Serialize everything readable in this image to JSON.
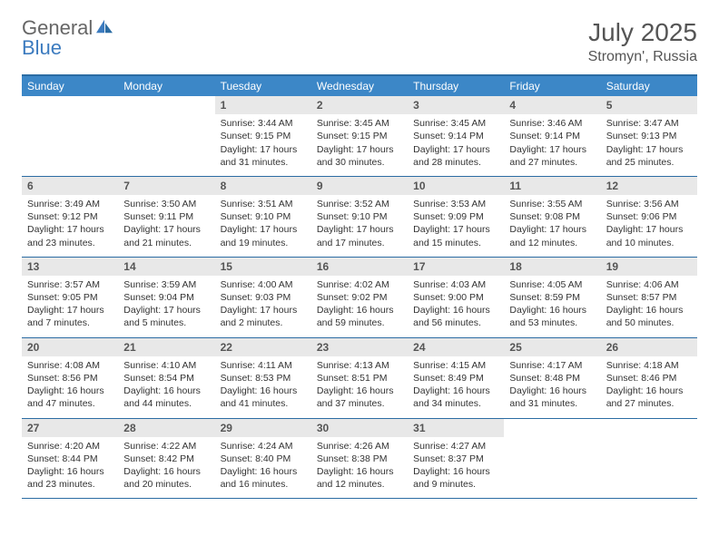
{
  "logo": {
    "text1": "General",
    "text2": "Blue"
  },
  "header": {
    "month": "July 2025",
    "location": "Stromyn', Russia"
  },
  "colors": {
    "header_bar": "#3c87c7",
    "border": "#2b6ca3",
    "daynum_bg": "#e8e8e8",
    "logo_blue": "#3c7bbf"
  },
  "day_labels": [
    "Sunday",
    "Monday",
    "Tuesday",
    "Wednesday",
    "Thursday",
    "Friday",
    "Saturday"
  ],
  "weeks": [
    [
      {
        "blank": true
      },
      {
        "blank": true
      },
      {
        "num": "1",
        "sunrise": "Sunrise: 3:44 AM",
        "sunset": "Sunset: 9:15 PM",
        "day1": "Daylight: 17 hours",
        "day2": "and 31 minutes."
      },
      {
        "num": "2",
        "sunrise": "Sunrise: 3:45 AM",
        "sunset": "Sunset: 9:15 PM",
        "day1": "Daylight: 17 hours",
        "day2": "and 30 minutes."
      },
      {
        "num": "3",
        "sunrise": "Sunrise: 3:45 AM",
        "sunset": "Sunset: 9:14 PM",
        "day1": "Daylight: 17 hours",
        "day2": "and 28 minutes."
      },
      {
        "num": "4",
        "sunrise": "Sunrise: 3:46 AM",
        "sunset": "Sunset: 9:14 PM",
        "day1": "Daylight: 17 hours",
        "day2": "and 27 minutes."
      },
      {
        "num": "5",
        "sunrise": "Sunrise: 3:47 AM",
        "sunset": "Sunset: 9:13 PM",
        "day1": "Daylight: 17 hours",
        "day2": "and 25 minutes."
      }
    ],
    [
      {
        "num": "6",
        "sunrise": "Sunrise: 3:49 AM",
        "sunset": "Sunset: 9:12 PM",
        "day1": "Daylight: 17 hours",
        "day2": "and 23 minutes."
      },
      {
        "num": "7",
        "sunrise": "Sunrise: 3:50 AM",
        "sunset": "Sunset: 9:11 PM",
        "day1": "Daylight: 17 hours",
        "day2": "and 21 minutes."
      },
      {
        "num": "8",
        "sunrise": "Sunrise: 3:51 AM",
        "sunset": "Sunset: 9:10 PM",
        "day1": "Daylight: 17 hours",
        "day2": "and 19 minutes."
      },
      {
        "num": "9",
        "sunrise": "Sunrise: 3:52 AM",
        "sunset": "Sunset: 9:10 PM",
        "day1": "Daylight: 17 hours",
        "day2": "and 17 minutes."
      },
      {
        "num": "10",
        "sunrise": "Sunrise: 3:53 AM",
        "sunset": "Sunset: 9:09 PM",
        "day1": "Daylight: 17 hours",
        "day2": "and 15 minutes."
      },
      {
        "num": "11",
        "sunrise": "Sunrise: 3:55 AM",
        "sunset": "Sunset: 9:08 PM",
        "day1": "Daylight: 17 hours",
        "day2": "and 12 minutes."
      },
      {
        "num": "12",
        "sunrise": "Sunrise: 3:56 AM",
        "sunset": "Sunset: 9:06 PM",
        "day1": "Daylight: 17 hours",
        "day2": "and 10 minutes."
      }
    ],
    [
      {
        "num": "13",
        "sunrise": "Sunrise: 3:57 AM",
        "sunset": "Sunset: 9:05 PM",
        "day1": "Daylight: 17 hours",
        "day2": "and 7 minutes."
      },
      {
        "num": "14",
        "sunrise": "Sunrise: 3:59 AM",
        "sunset": "Sunset: 9:04 PM",
        "day1": "Daylight: 17 hours",
        "day2": "and 5 minutes."
      },
      {
        "num": "15",
        "sunrise": "Sunrise: 4:00 AM",
        "sunset": "Sunset: 9:03 PM",
        "day1": "Daylight: 17 hours",
        "day2": "and 2 minutes."
      },
      {
        "num": "16",
        "sunrise": "Sunrise: 4:02 AM",
        "sunset": "Sunset: 9:02 PM",
        "day1": "Daylight: 16 hours",
        "day2": "and 59 minutes."
      },
      {
        "num": "17",
        "sunrise": "Sunrise: 4:03 AM",
        "sunset": "Sunset: 9:00 PM",
        "day1": "Daylight: 16 hours",
        "day2": "and 56 minutes."
      },
      {
        "num": "18",
        "sunrise": "Sunrise: 4:05 AM",
        "sunset": "Sunset: 8:59 PM",
        "day1": "Daylight: 16 hours",
        "day2": "and 53 minutes."
      },
      {
        "num": "19",
        "sunrise": "Sunrise: 4:06 AM",
        "sunset": "Sunset: 8:57 PM",
        "day1": "Daylight: 16 hours",
        "day2": "and 50 minutes."
      }
    ],
    [
      {
        "num": "20",
        "sunrise": "Sunrise: 4:08 AM",
        "sunset": "Sunset: 8:56 PM",
        "day1": "Daylight: 16 hours",
        "day2": "and 47 minutes."
      },
      {
        "num": "21",
        "sunrise": "Sunrise: 4:10 AM",
        "sunset": "Sunset: 8:54 PM",
        "day1": "Daylight: 16 hours",
        "day2": "and 44 minutes."
      },
      {
        "num": "22",
        "sunrise": "Sunrise: 4:11 AM",
        "sunset": "Sunset: 8:53 PM",
        "day1": "Daylight: 16 hours",
        "day2": "and 41 minutes."
      },
      {
        "num": "23",
        "sunrise": "Sunrise: 4:13 AM",
        "sunset": "Sunset: 8:51 PM",
        "day1": "Daylight: 16 hours",
        "day2": "and 37 minutes."
      },
      {
        "num": "24",
        "sunrise": "Sunrise: 4:15 AM",
        "sunset": "Sunset: 8:49 PM",
        "day1": "Daylight: 16 hours",
        "day2": "and 34 minutes."
      },
      {
        "num": "25",
        "sunrise": "Sunrise: 4:17 AM",
        "sunset": "Sunset: 8:48 PM",
        "day1": "Daylight: 16 hours",
        "day2": "and 31 minutes."
      },
      {
        "num": "26",
        "sunrise": "Sunrise: 4:18 AM",
        "sunset": "Sunset: 8:46 PM",
        "day1": "Daylight: 16 hours",
        "day2": "and 27 minutes."
      }
    ],
    [
      {
        "num": "27",
        "sunrise": "Sunrise: 4:20 AM",
        "sunset": "Sunset: 8:44 PM",
        "day1": "Daylight: 16 hours",
        "day2": "and 23 minutes."
      },
      {
        "num": "28",
        "sunrise": "Sunrise: 4:22 AM",
        "sunset": "Sunset: 8:42 PM",
        "day1": "Daylight: 16 hours",
        "day2": "and 20 minutes."
      },
      {
        "num": "29",
        "sunrise": "Sunrise: 4:24 AM",
        "sunset": "Sunset: 8:40 PM",
        "day1": "Daylight: 16 hours",
        "day2": "and 16 minutes."
      },
      {
        "num": "30",
        "sunrise": "Sunrise: 4:26 AM",
        "sunset": "Sunset: 8:38 PM",
        "day1": "Daylight: 16 hours",
        "day2": "and 12 minutes."
      },
      {
        "num": "31",
        "sunrise": "Sunrise: 4:27 AM",
        "sunset": "Sunset: 8:37 PM",
        "day1": "Daylight: 16 hours",
        "day2": "and 9 minutes."
      },
      {
        "blank": true
      },
      {
        "blank": true
      }
    ]
  ]
}
